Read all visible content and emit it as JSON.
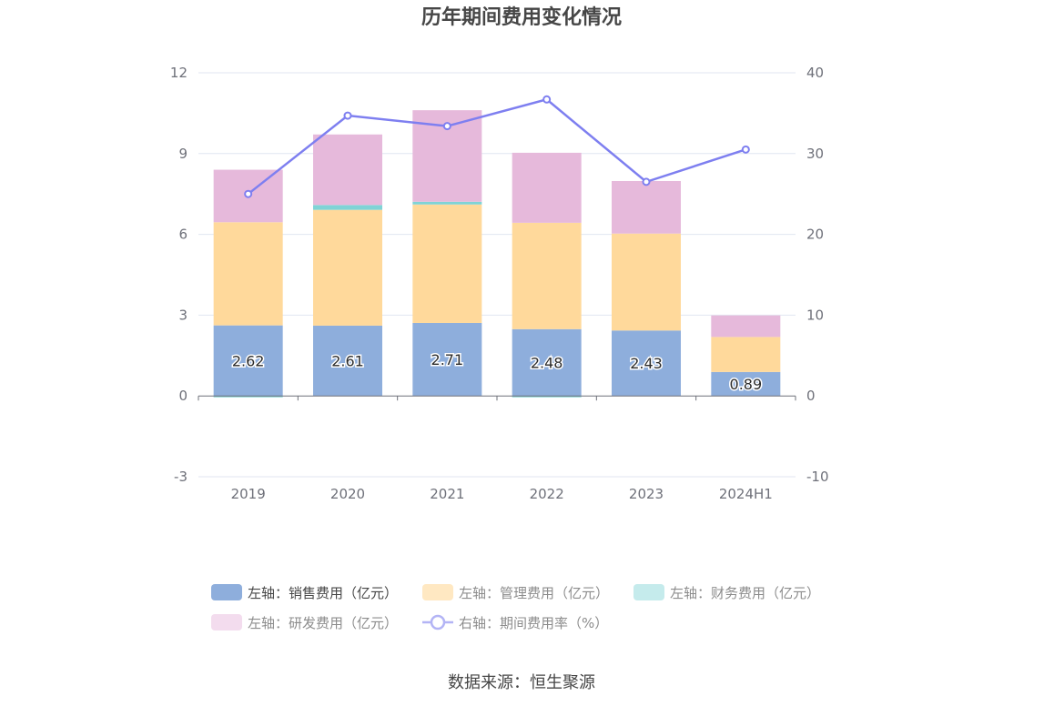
{
  "chart_data": {
    "type": "bar",
    "stacked": true,
    "title": "历年期间费用变化情况",
    "categories": [
      "2019",
      "2020",
      "2021",
      "2022",
      "2023",
      "2024H1"
    ],
    "left_axis": {
      "min": -3,
      "max": 12,
      "ticks": [
        "-3",
        "0",
        "3",
        "6",
        "9",
        "12"
      ]
    },
    "right_axis": {
      "min": -10,
      "max": 40,
      "ticks": [
        "-10",
        "0",
        "10",
        "20",
        "30",
        "40"
      ]
    },
    "series": [
      {
        "name": "左轴：销售费用（亿元）",
        "axis": "left",
        "color": "#8eaedc",
        "values": [
          2.62,
          2.61,
          2.71,
          2.48,
          2.43,
          0.89
        ],
        "labels": [
          "2.62",
          "2.61",
          "2.71",
          "2.48",
          "2.43",
          "0.89"
        ]
      },
      {
        "name": "左轴：管理费用（亿元）",
        "axis": "left",
        "color": "#ffd99b",
        "values": [
          3.83,
          4.3,
          4.4,
          3.95,
          3.6,
          1.3
        ]
      },
      {
        "name": "左轴：财务费用（亿元）",
        "axis": "left",
        "color": "#7fd3d6",
        "values": [
          -0.05,
          0.18,
          0.1,
          -0.05,
          0.0,
          0.0
        ]
      },
      {
        "name": "左轴：研发费用（亿元）",
        "axis": "left",
        "color": "#e6b9db",
        "values": [
          1.95,
          2.62,
          3.4,
          2.6,
          1.95,
          0.8
        ]
      },
      {
        "name": "右轴：期间费用率（%）",
        "axis": "right",
        "type": "line",
        "color": "#7e7ff0",
        "values": [
          25.0,
          34.7,
          33.4,
          36.7,
          26.5,
          30.5
        ]
      }
    ],
    "legend_position": "bottom",
    "grid": true
  },
  "legend": {
    "items": [
      {
        "label": "左轴：销售费用（亿元）",
        "color": "#8eaedc",
        "kind": "rect",
        "dim": false
      },
      {
        "label": "左轴：管理费用（亿元）",
        "color": "#ffe8c2",
        "kind": "rect",
        "dim": true
      },
      {
        "label": "左轴：财务费用（亿元）",
        "color": "#c5ebec",
        "kind": "rect",
        "dim": true
      },
      {
        "label": "左轴：研发费用（亿元）",
        "color": "#f3dcee",
        "kind": "rect",
        "dim": true
      },
      {
        "label": "右轴：期间费用率（%）",
        "color": "#b3b4f5",
        "kind": "line",
        "dim": true
      }
    ]
  },
  "source": "数据来源：恒生聚源"
}
